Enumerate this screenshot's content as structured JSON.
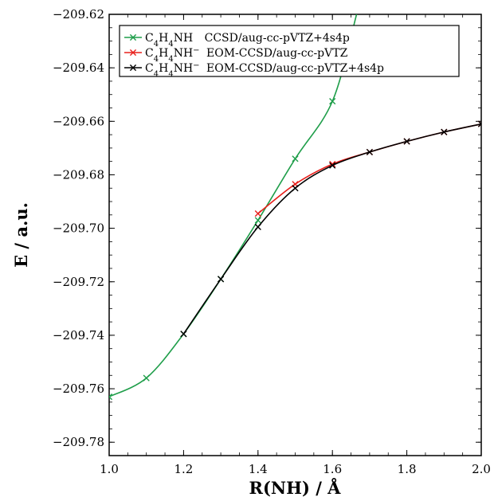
{
  "chart_data": {
    "type": "line",
    "xlabel": "R(NH) / Å",
    "ylabel": "E / a.u.",
    "xlim": [
      1.0,
      2.0
    ],
    "ylim": [
      -209.785,
      -209.62
    ],
    "xticks": [
      "1.0",
      "1.2",
      "1.4",
      "1.6",
      "1.8",
      "2.0"
    ],
    "yticks": [
      "−209.62",
      "−209.64",
      "−209.66",
      "−209.68",
      "−209.70",
      "−209.72",
      "−209.74",
      "−209.76",
      "−209.78"
    ],
    "grid": false,
    "legend_position": "top-left",
    "series": [
      {
        "name": "C4H4NH   CCSD/aug-cc-pVTZ+4s4p",
        "legend": {
          "mol": "C",
          "s1": "4",
          "mid": "H",
          "s2": "4",
          "tail": "NH",
          "charge": "",
          "method": "CCSD/aug-cc-pVTZ+4s4p"
        },
        "color": "#1f9e4a",
        "x": [
          1.0,
          1.1,
          1.2,
          1.3,
          1.4,
          1.5,
          1.6
        ],
        "y": [
          -209.763,
          -209.756,
          -209.7395,
          -209.719,
          -209.697,
          -209.674,
          -209.6525
        ],
        "curve_extends_to": {
          "x": 1.665,
          "y": -209.62
        }
      },
      {
        "name": "C4H4NH− EOM-CCSD/aug-cc-pVTZ",
        "legend": {
          "mol": "C",
          "s1": "4",
          "mid": "H",
          "s2": "4",
          "tail": "NH",
          "charge": "−",
          "method": "EOM-CCSD/aug-cc-pVTZ"
        },
        "color": "#e8201c",
        "x": [
          1.4,
          1.5,
          1.6,
          1.7,
          1.8,
          1.9,
          2.0
        ],
        "y": [
          -209.6945,
          -209.6835,
          -209.676,
          -209.6715,
          -209.6675,
          -209.664,
          -209.661
        ]
      },
      {
        "name": "C4H4NH− EOM-CCSD/aug-cc-pVTZ+4s4p",
        "legend": {
          "mol": "C",
          "s1": "4",
          "mid": "H",
          "s2": "4",
          "tail": "NH",
          "charge": "−",
          "method": "EOM-CCSD/aug-cc-pVTZ+4s4p"
        },
        "color": "#000000",
        "x": [
          1.2,
          1.3,
          1.4,
          1.5,
          1.6,
          1.7,
          1.8,
          1.9,
          2.0
        ],
        "y": [
          -209.7395,
          -209.719,
          -209.6995,
          -209.685,
          -209.6765,
          -209.6715,
          -209.6675,
          -209.664,
          -209.661
        ]
      }
    ]
  }
}
